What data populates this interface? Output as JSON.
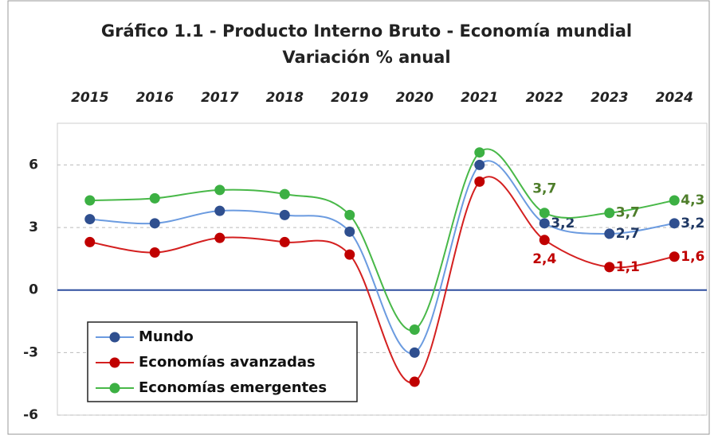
{
  "chart_data": {
    "type": "line",
    "title": "Gráfico 1.1 - Producto Interno Bruto - Economía mundial",
    "subtitle": "Variación % anual",
    "categories": [
      "2015",
      "2016",
      "2017",
      "2018",
      "2019",
      "2020",
      "2021",
      "2022",
      "2023",
      "2024"
    ],
    "ylim": [
      -6,
      8
    ],
    "yticks": [
      -6,
      -3,
      0,
      3,
      6
    ],
    "grid": true,
    "smooth": true,
    "legend": "lower left",
    "series": [
      {
        "name": "Mundo",
        "color": "#6b9be0",
        "marker_color": "#2f4f8f",
        "label_color": "#1f3864",
        "values": [
          3.4,
          3.2,
          3.8,
          3.6,
          2.8,
          -3.0,
          6.0,
          3.2,
          2.7,
          3.2
        ],
        "value_labels": [
          null,
          null,
          null,
          null,
          null,
          null,
          null,
          "3,2",
          "2,7",
          "3,2"
        ]
      },
      {
        "name": "Economías avanzadas",
        "color": "#d42020",
        "marker_color": "#c00000",
        "label_color": "#c00000",
        "values": [
          2.3,
          1.8,
          2.5,
          2.3,
          1.7,
          -4.4,
          5.2,
          2.4,
          1.1,
          1.6
        ],
        "value_labels": [
          null,
          null,
          null,
          null,
          null,
          null,
          null,
          "2,4",
          "1,1",
          "1,6"
        ]
      },
      {
        "name": "Economías emergentes",
        "color": "#48b848",
        "marker_color": "#3cb043",
        "label_color": "#4e7d2a",
        "values": [
          4.3,
          4.4,
          4.8,
          4.6,
          3.6,
          -1.9,
          6.6,
          3.7,
          3.7,
          4.3
        ],
        "value_labels": [
          null,
          null,
          null,
          null,
          null,
          null,
          null,
          "3,7",
          "3,7",
          "4,3"
        ]
      }
    ]
  }
}
